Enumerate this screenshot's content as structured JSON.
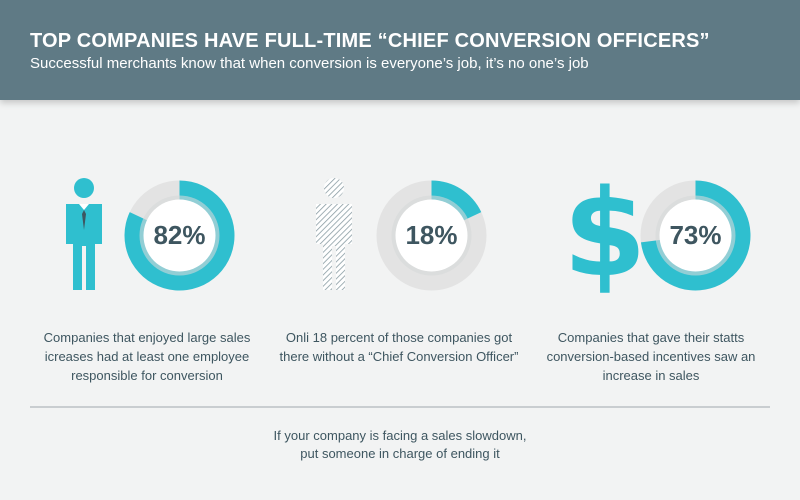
{
  "header": {
    "title": "TOP COMPANIES HAVE FULL-TIME “CHIEF CONVERSION OFFICERS”",
    "subtitle": "Successful merchants know that when conversion is everyone’s job, it’s no one’s job"
  },
  "colors": {
    "header_bg": "#5f7a85",
    "accent": "#2fbfcf",
    "track": "#e3e3e3",
    "text": "#3e5660"
  },
  "stats": [
    {
      "icon": "businessman-icon",
      "label": "82%",
      "caption": "Companies that enjoyed large sales icreases had at least one employee responsible for conversion"
    },
    {
      "icon": "hatched-businessman-icon",
      "label": "18%",
      "caption": "Onli 18 percent of those companies got there without a “Chief Conversion Officer”"
    },
    {
      "icon": "dollar-sign-icon",
      "label": "73%",
      "caption": "Companies that gave their statts conversion-based incentives saw an increase in sales"
    }
  ],
  "footer": {
    "line1": "If your company is facing a sales slowdown,",
    "line2": "put someone in charge of ending it"
  },
  "chart_data": {
    "type": "pie",
    "categories": [
      "82%",
      "18%",
      "73%"
    ],
    "values": [
      82,
      18,
      73
    ]
  }
}
